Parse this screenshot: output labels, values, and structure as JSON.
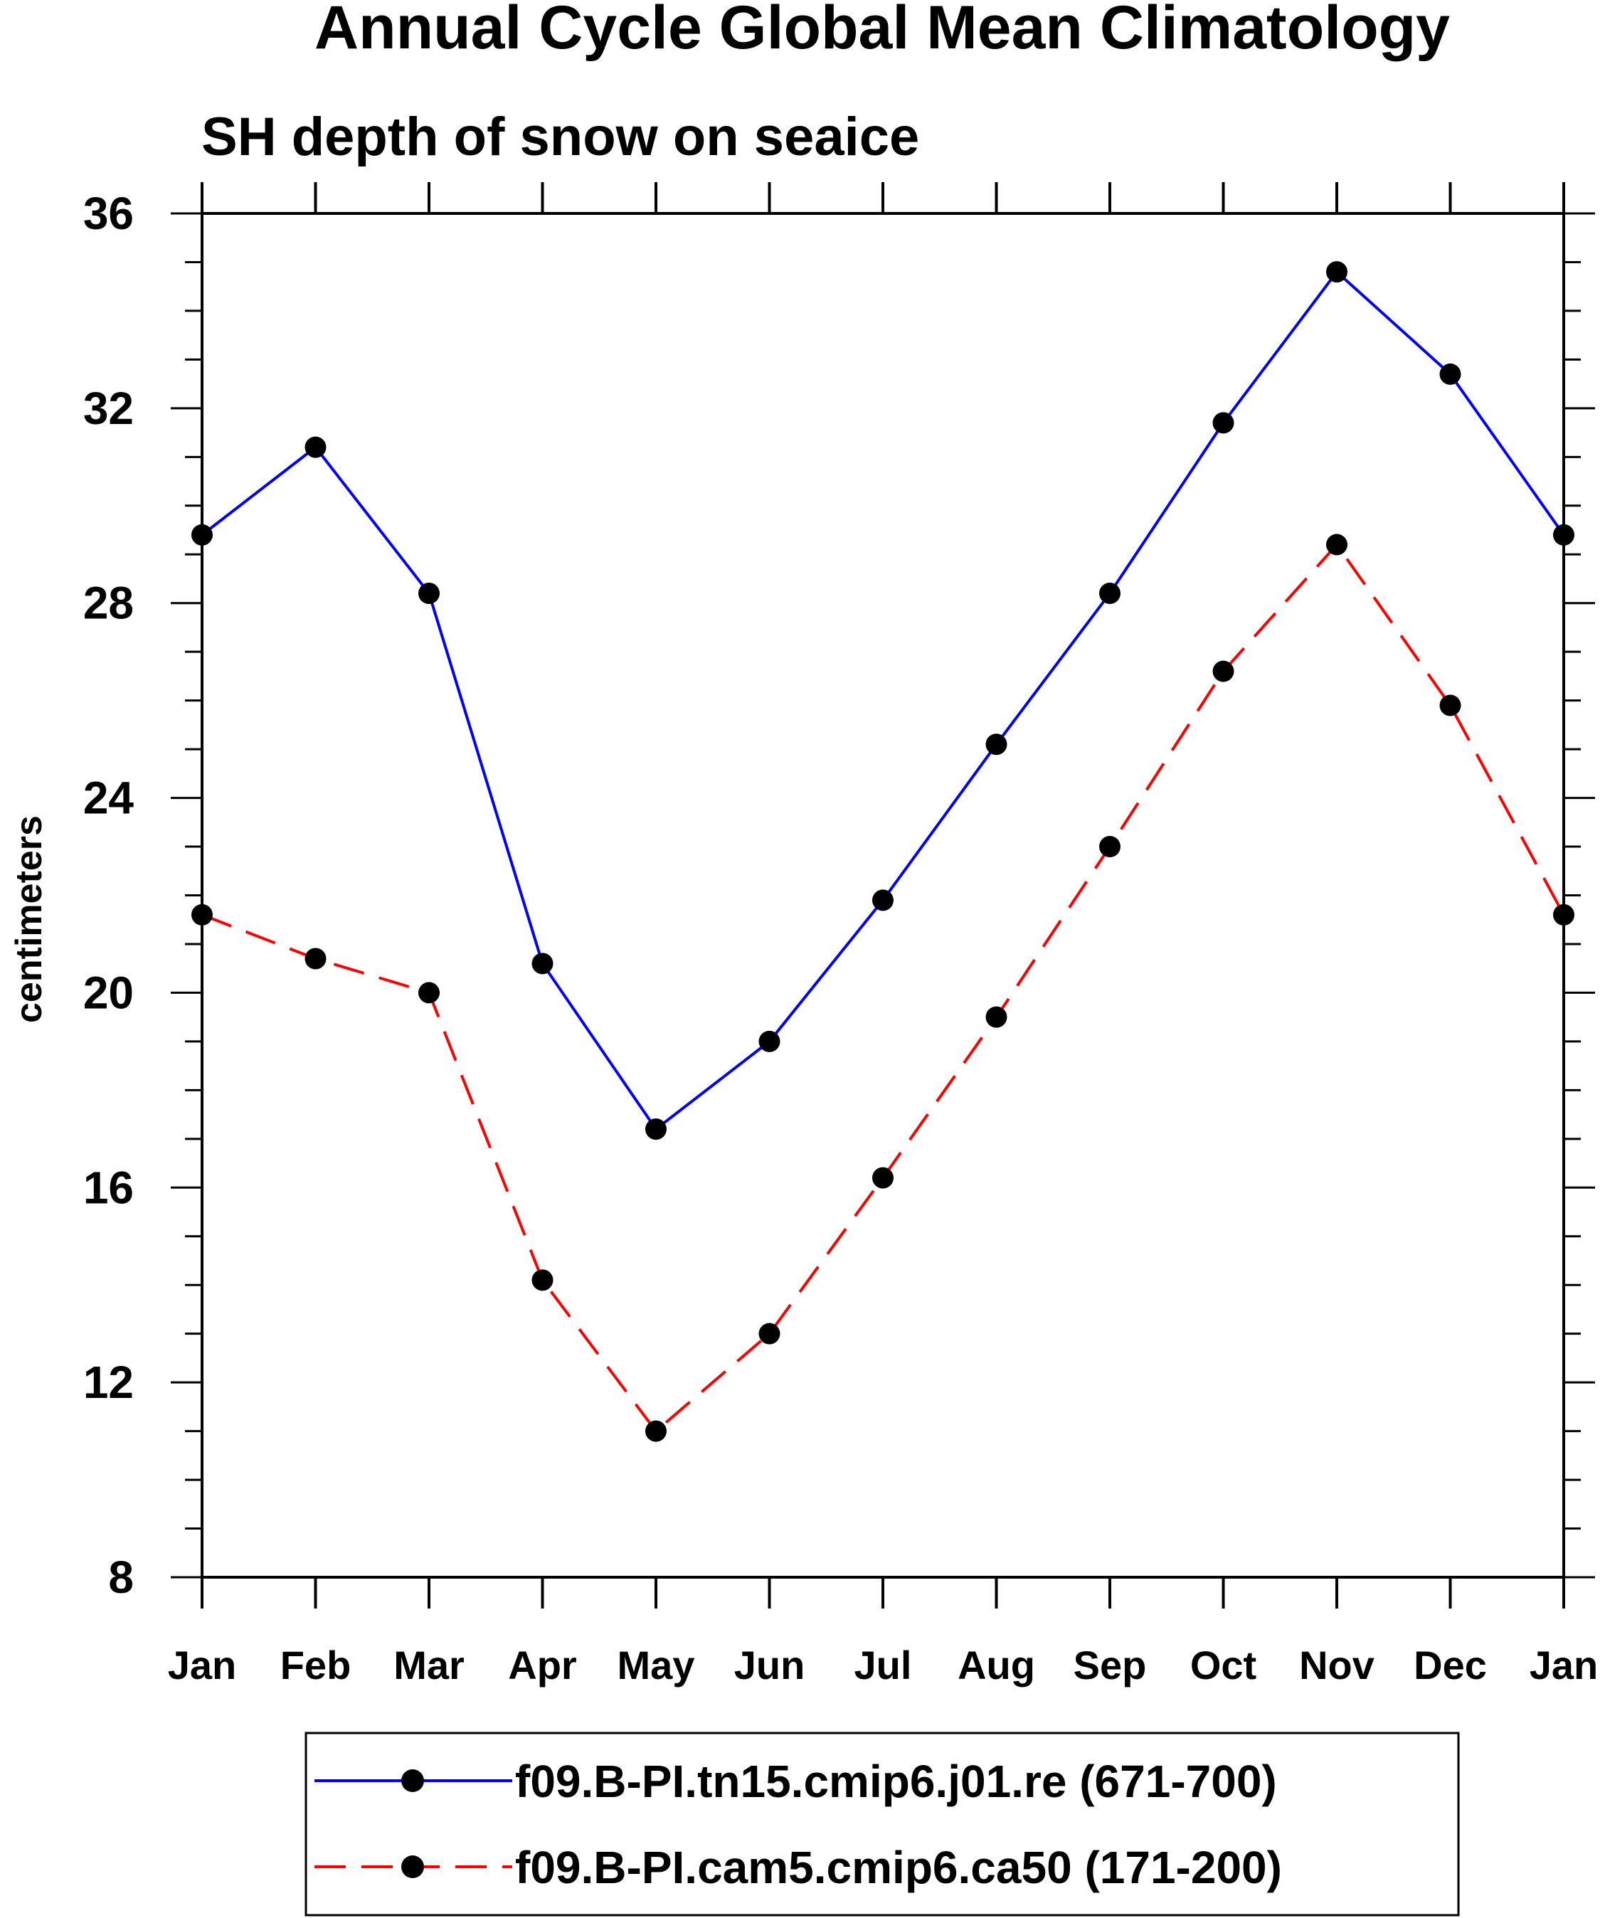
{
  "chart_data": {
    "type": "line",
    "title": "Annual Cycle Global Mean Climatology",
    "subtitle": "SH depth of snow on seaice",
    "ylabel": "centimeters",
    "xlabel": "",
    "categories": [
      "Jan",
      "Feb",
      "Mar",
      "Apr",
      "May",
      "Jun",
      "Jul",
      "Aug",
      "Sep",
      "Oct",
      "Nov",
      "Dec",
      "Jan"
    ],
    "ylim": [
      8,
      36
    ],
    "yticks": [
      8,
      12,
      16,
      20,
      24,
      28,
      32,
      36
    ],
    "grid": false,
    "legend_position": "bottom",
    "series": [
      {
        "name": "f09.B-PI.tn15.cmip6.j01.re (671-700)",
        "color": "#0000ff",
        "dash": "solid",
        "marker": "filled-circle",
        "values": [
          29.4,
          31.2,
          28.2,
          20.6,
          17.2,
          19.0,
          21.9,
          25.1,
          28.2,
          31.7,
          34.8,
          32.7,
          29.4
        ]
      },
      {
        "name": "f09.B-PI.cam5.cmip6.ca50 (171-200)",
        "color": "#ff0000",
        "dash": "dashed",
        "marker": "filled-circle",
        "values": [
          21.6,
          20.7,
          20.0,
          14.1,
          11.0,
          13.0,
          16.2,
          19.5,
          23.0,
          26.6,
          29.2,
          25.9,
          21.6
        ]
      }
    ]
  }
}
